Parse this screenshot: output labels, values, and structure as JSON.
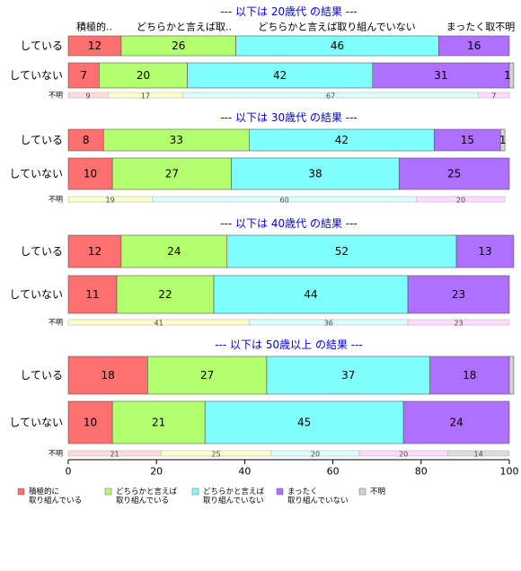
{
  "chart_data": {
    "type": "bar",
    "orientation": "horizontal",
    "stacked": true,
    "xlim": [
      0,
      100
    ],
    "xticks": [
      "0",
      "20",
      "40",
      "60",
      "80",
      "100"
    ],
    "grid": false,
    "legend_position": "bottom",
    "column_headers": [
      "積極的..",
      "どちらかと言えば取..",
      "どちらかと言えば取り組んでいない",
      "まったく取不明"
    ],
    "legend": [
      {
        "label_lines": [
          "積極的に",
          "取り組んでいる"
        ],
        "color": "#ff7070"
      },
      {
        "label_lines": [
          "どちらかと言えば",
          "取り組んでいる"
        ],
        "color": "#b3ff70"
      },
      {
        "label_lines": [
          "どちらかと言えば",
          "取り組んでいない"
        ],
        "color": "#80ffff"
      },
      {
        "label_lines": [
          "まったく",
          "取り組んでいない"
        ],
        "color": "#b070ff"
      },
      {
        "label_lines": [
          "不明"
        ],
        "color": "#d4d4d4"
      }
    ],
    "unknown_colors": [
      "#ffdcdc",
      "#ffffcc",
      "#dcffff",
      "#ffdcff",
      "#dddddd"
    ],
    "groups": [
      {
        "title": "--- 以下は 20歳代 の結果 ---",
        "rows": [
          {
            "label": "している",
            "values": [
              12,
              26,
              46,
              16,
              0
            ],
            "labels": [
              "12",
              "26",
              "46",
              "16",
              ""
            ]
          },
          {
            "label": "していない",
            "values": [
              7,
              20,
              42,
              31,
              1
            ],
            "labels": [
              "7",
              "20",
              "42",
              "31",
              "1"
            ]
          }
        ],
        "unknown": {
          "label": "不明",
          "values": [
            9,
            17,
            67,
            7,
            0
          ],
          "labels": [
            "9",
            "17",
            "67",
            "7",
            ""
          ]
        }
      },
      {
        "title": "--- 以下は 30歳代 の結果 ---",
        "rows": [
          {
            "label": "している",
            "values": [
              8,
              33,
              42,
              15,
              1
            ],
            "labels": [
              "8",
              "33",
              "42",
              "15",
              "1"
            ]
          },
          {
            "label": "していない",
            "values": [
              10,
              27,
              38,
              25,
              0
            ],
            "labels": [
              "10",
              "27",
              "38",
              "25",
              ""
            ]
          }
        ],
        "unknown": {
          "label": "不明",
          "values": [
            0,
            19,
            60,
            20,
            0
          ],
          "labels": [
            "",
            "19",
            "60",
            "20",
            ""
          ]
        }
      },
      {
        "title": "--- 以下は 40歳代 の結果 ---",
        "rows": [
          {
            "label": "している",
            "values": [
              12,
              24,
              52,
              13,
              0
            ],
            "labels": [
              "12",
              "24",
              "52",
              "13",
              ""
            ]
          },
          {
            "label": "していない",
            "values": [
              11,
              22,
              44,
              23,
              0
            ],
            "labels": [
              "11",
              "22",
              "44",
              "23",
              ""
            ]
          }
        ],
        "unknown": {
          "label": "不明",
          "values": [
            0,
            41,
            36,
            23,
            0
          ],
          "labels": [
            "",
            "41",
            "36",
            "23",
            ""
          ]
        }
      },
      {
        "title": "--- 以下は 50歳以上 の結果 ---",
        "rows": [
          {
            "label": "している",
            "values": [
              18,
              27,
              37,
              18,
              1
            ],
            "labels": [
              "18",
              "27",
              "37",
              "18",
              ""
            ]
          },
          {
            "label": "していない",
            "values": [
              10,
              21,
              45,
              24,
              0
            ],
            "labels": [
              "10",
              "21",
              "45",
              "24",
              ""
            ]
          }
        ],
        "unknown": {
          "label": "不明",
          "values": [
            21,
            25,
            20,
            20,
            14
          ],
          "labels": [
            "21",
            "25",
            "20",
            "20",
            "14"
          ]
        }
      }
    ]
  }
}
